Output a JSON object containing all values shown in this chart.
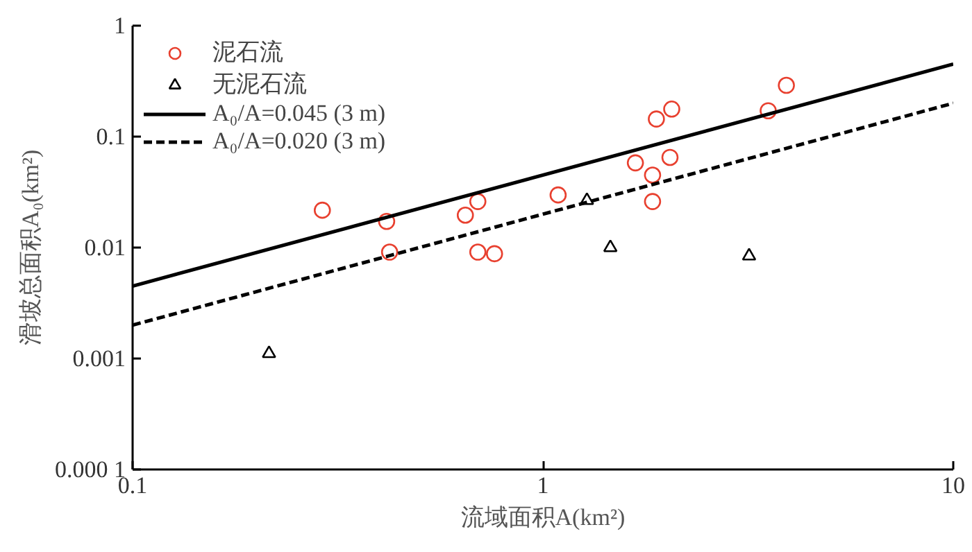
{
  "chart_data": {
    "type": "scatter",
    "xlabel": "流域面积A(km²)",
    "ylabel": "滑坡总面积A₀(km²)",
    "log": "xy",
    "xlim": [
      0.1,
      10
    ],
    "ylim": [
      0.0001,
      1
    ],
    "xticks": [
      0.1,
      1,
      10
    ],
    "yticks": [
      {
        "value": 0.0001,
        "label": "0.000 1"
      },
      0.001,
      0.01,
      0.1,
      1
    ],
    "grid": false,
    "legend": "top left",
    "series": [
      {
        "name": "泥石流",
        "color": "#e8402f",
        "marker": "circle",
        "x": [
          0.29,
          0.416,
          0.423,
          0.647,
          0.694,
          0.694,
          0.762,
          1.089,
          1.68,
          1.85,
          1.85,
          1.89,
          2.06,
          2.04,
          3.54,
          3.92
        ],
        "values": [
          0.0217,
          0.0172,
          0.0091,
          0.0196,
          0.026,
          0.0091,
          0.0088,
          0.0298,
          0.058,
          0.045,
          0.026,
          0.144,
          0.177,
          0.065,
          0.171,
          0.29
        ]
      },
      {
        "name": "无泥石流",
        "color": "#000000",
        "marker": "triangle",
        "x": [
          0.215,
          1.28,
          1.46,
          3.18
        ],
        "values": [
          0.00111,
          0.0266,
          0.01,
          0.0084
        ]
      },
      {
        "name": "A₀/A=0.045 (3 m)",
        "type": "line",
        "color": "#000000",
        "line_style": "solid",
        "marker": "none",
        "x": [
          0.1,
          10
        ],
        "values": [
          0.0045,
          0.45
        ]
      },
      {
        "name": "A₀/A=0.020 (3 m)",
        "type": "line",
        "color": "#000000",
        "line_style": "dashed",
        "marker": "none",
        "x": [
          0.1,
          10
        ],
        "values": [
          0.002,
          0.2
        ]
      }
    ]
  }
}
